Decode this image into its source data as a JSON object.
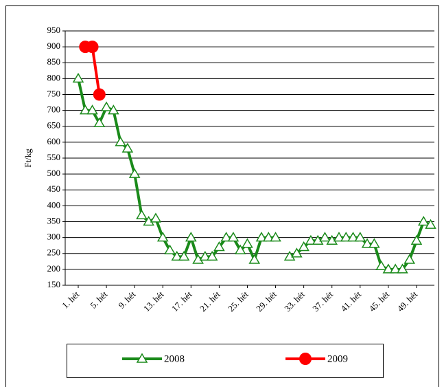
{
  "chart_data": {
    "type": "line",
    "y_label": "Ft/kg",
    "categories": [
      "1. hét",
      null,
      null,
      null,
      "5. hét",
      null,
      null,
      null,
      "9. hét",
      null,
      null,
      null,
      "13. hét",
      null,
      null,
      null,
      "17. hét",
      null,
      null,
      null,
      "21. hét",
      null,
      null,
      null,
      "25. hét",
      null,
      null,
      null,
      "29. hét",
      null,
      null,
      null,
      "33. hét",
      null,
      null,
      null,
      "37. hét",
      null,
      null,
      null,
      "41. hét",
      null,
      null,
      null,
      "45. hét",
      null,
      null,
      null,
      "49. hét",
      null,
      null
    ],
    "series": [
      {
        "name": "2008",
        "color": "#1a8a1a",
        "marker": "triangle",
        "values": [
          800,
          700,
          700,
          660,
          710,
          700,
          600,
          580,
          500,
          370,
          350,
          360,
          300,
          260,
          240,
          240,
          300,
          230,
          240,
          240,
          270,
          300,
          300,
          260,
          280,
          230,
          300,
          300,
          300,
          null,
          240,
          250,
          270,
          290,
          290,
          300,
          290,
          300,
          300,
          300,
          300,
          280,
          280,
          210,
          200,
          200,
          200,
          230,
          290,
          350,
          340
        ]
      },
      {
        "name": "2009",
        "color": "#ff0000",
        "marker": "circle",
        "values": [
          null,
          900,
          900,
          750,
          null,
          null,
          null,
          null,
          null,
          null,
          null,
          null,
          null,
          null,
          null,
          null,
          null,
          null,
          null,
          null,
          null,
          null,
          null,
          null,
          null,
          null,
          null,
          null,
          null,
          null,
          null,
          null,
          null,
          null,
          null,
          null,
          null,
          null,
          null,
          null,
          null,
          null,
          null,
          null,
          null,
          null,
          null,
          null,
          null,
          null,
          null
        ]
      }
    ],
    "ylim": [
      150,
      950
    ],
    "yticks": [
      150,
      200,
      250,
      300,
      350,
      400,
      450,
      500,
      550,
      600,
      650,
      700,
      750,
      800,
      850,
      900,
      950
    ],
    "grid": true,
    "legend": "bottom"
  }
}
